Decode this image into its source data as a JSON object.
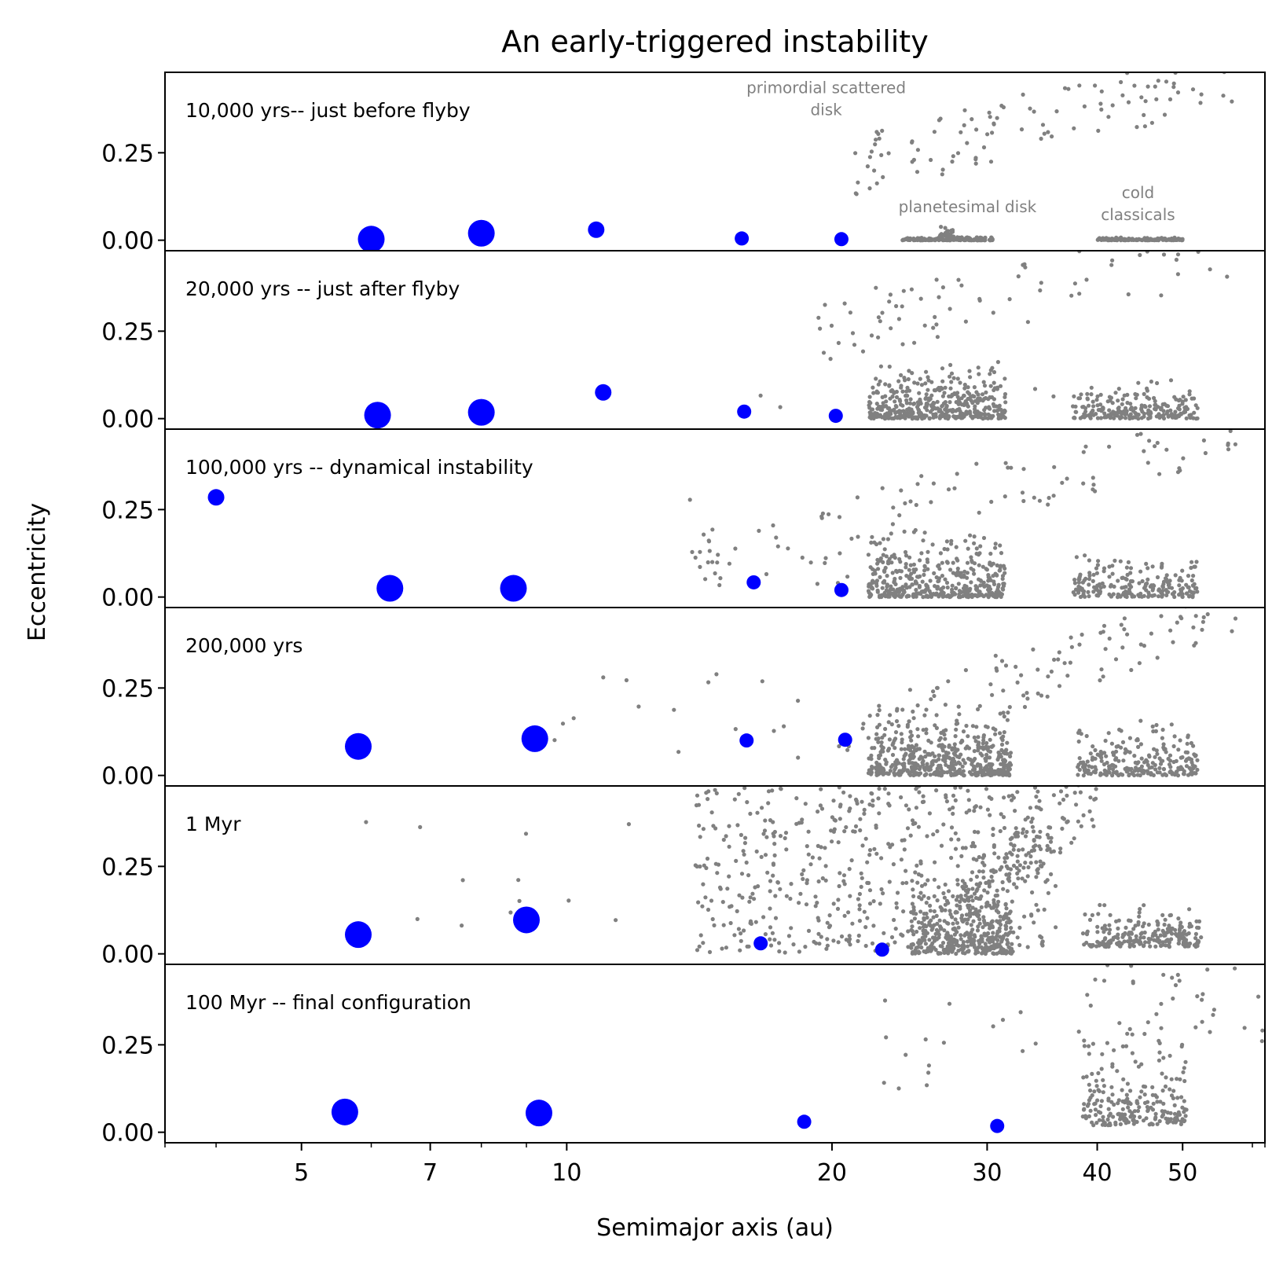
{
  "chart_data": {
    "type": "scatter",
    "title": "An early-triggered instability",
    "xlabel": "Semimajor axis (au)",
    "ylabel": "Eccentricity",
    "xscale": "log",
    "xlim": [
      3.5,
      62
    ],
    "ylim": [
      -0.03,
      0.48
    ],
    "x_ticks": [
      5,
      7,
      10,
      20,
      30,
      40,
      50
    ],
    "x_tick_labels": [
      "5",
      "7",
      "10",
      "20",
      "30",
      "40",
      "50"
    ],
    "x_minor_ticks": [
      4,
      6,
      8,
      9,
      60
    ],
    "y_ticks": [
      0.0,
      0.25
    ],
    "y_tick_labels": [
      "0.00",
      "0.25"
    ],
    "colors": {
      "planet": "#0000ff",
      "particle": "#808080"
    },
    "annotations": [
      {
        "panel": 0,
        "lines": [
          "primordial scattered",
          "disk"
        ],
        "x": 19.7,
        "y": 0.42
      },
      {
        "panel": 0,
        "lines": [
          "planetesimal disk"
        ],
        "x": 28.5,
        "y": 0.08
      },
      {
        "panel": 0,
        "lines": [
          "cold",
          "classicals"
        ],
        "x": 44.5,
        "y": 0.12
      }
    ],
    "panels": [
      {
        "label": "10,000 yrs-- just before flyby",
        "planets": [
          {
            "a": 6.0,
            "e": 0.003,
            "size": 3
          },
          {
            "a": 8.0,
            "e": 0.02,
            "size": 3
          },
          {
            "a": 10.8,
            "e": 0.03,
            "size": 2
          },
          {
            "a": 15.8,
            "e": 0.005,
            "size": 1
          },
          {
            "a": 20.5,
            "e": 0.003,
            "size": 1
          }
        ],
        "particles": [
          {
            "population": "scattered",
            "a_range": [
              20.5,
              58
            ],
            "e_range": [
              0.2,
              0.48
            ],
            "trend": true,
            "count": 110,
            "seed": 11
          },
          {
            "population": "disk",
            "a_range": [
              24,
              30.5
            ],
            "e_range": [
              0.0,
              0.01
            ],
            "count": 230,
            "seed": 12
          },
          {
            "population": "disk",
            "a_range": [
              26.5,
              27.5
            ],
            "e_range": [
              0.01,
              0.045
            ],
            "count": 25,
            "seed": 13
          },
          {
            "population": "cold",
            "a_range": [
              40,
              50
            ],
            "e_range": [
              0.0,
              0.008
            ],
            "count": 150,
            "seed": 14
          }
        ]
      },
      {
        "label": "20,000 yrs -- just after flyby",
        "planets": [
          {
            "a": 6.1,
            "e": 0.01,
            "size": 3
          },
          {
            "a": 8.0,
            "e": 0.018,
            "size": 3
          },
          {
            "a": 11.0,
            "e": 0.075,
            "size": 2
          },
          {
            "a": 15.9,
            "e": 0.02,
            "size": 1
          },
          {
            "a": 20.2,
            "e": 0.008,
            "size": 1
          }
        ],
        "particles": [
          {
            "population": "scattered",
            "a_range": [
              19,
              58
            ],
            "e_range": [
              0.25,
              0.48
            ],
            "trend": true,
            "count": 80,
            "seed": 21
          },
          {
            "population": "disk",
            "a_range": [
              22,
              31.5
            ],
            "e_range": [
              0.0,
              0.17
            ],
            "count": 420,
            "seed": 22
          },
          {
            "population": "cold",
            "a_range": [
              37.5,
              52
            ],
            "e_range": [
              0.0,
              0.12
            ],
            "count": 220,
            "seed": 23
          },
          {
            "population": "sparse",
            "a_range": [
              16,
              37
            ],
            "e_range": [
              0.0,
              0.16
            ],
            "count": 8,
            "seed": 24
          }
        ]
      },
      {
        "label": "100,000 yrs -- dynamical instability",
        "planets": [
          {
            "a": 4.0,
            "e": 0.285,
            "size": 2
          },
          {
            "a": 6.3,
            "e": 0.025,
            "size": 3
          },
          {
            "a": 8.7,
            "e": 0.025,
            "size": 3
          },
          {
            "a": 16.3,
            "e": 0.042,
            "size": 1
          },
          {
            "a": 20.5,
            "e": 0.02,
            "size": 1
          }
        ],
        "particles": [
          {
            "population": "scattered",
            "a_range": [
              14,
              58
            ],
            "e_range": [
              0.1,
              0.48
            ],
            "trend": true,
            "count": 100,
            "seed": 31
          },
          {
            "population": "disk",
            "a_range": [
              22,
              31.5
            ],
            "e_range": [
              0.0,
              0.2
            ],
            "count": 420,
            "seed": 32
          },
          {
            "population": "cold",
            "a_range": [
              37.5,
              52
            ],
            "e_range": [
              0.0,
              0.13
            ],
            "count": 220,
            "seed": 33
          },
          {
            "population": "sparse",
            "a_range": [
              13.5,
              21
            ],
            "e_range": [
              0.03,
              0.28
            ],
            "count": 14,
            "seed": 34
          }
        ]
      },
      {
        "label": "200,000 yrs",
        "planets": [
          {
            "a": 5.8,
            "e": 0.083,
            "size": 3
          },
          {
            "a": 9.2,
            "e": 0.105,
            "size": 3
          },
          {
            "a": 16.0,
            "e": 0.1,
            "size": 1
          },
          {
            "a": 20.7,
            "e": 0.102,
            "size": 1
          }
        ],
        "particles": [
          {
            "population": "scattered",
            "a_range": [
              20,
              58
            ],
            "e_range": [
              0.1,
              0.48
            ],
            "trend": true,
            "count": 110,
            "seed": 41
          },
          {
            "population": "disk",
            "a_range": [
              22,
              32
            ],
            "e_range": [
              0.0,
              0.19
            ],
            "count": 520,
            "seed": 42
          },
          {
            "population": "cold",
            "a_range": [
              38,
              52
            ],
            "e_range": [
              0.0,
              0.17
            ],
            "count": 240,
            "seed": 43
          },
          {
            "population": "sparse",
            "a_range": [
              8.5,
              21
            ],
            "e_range": [
              0.05,
              0.3
            ],
            "count": 18,
            "seed": 44
          }
        ]
      },
      {
        "label": "1 Myr",
        "planets": [
          {
            "a": 5.8,
            "e": 0.055,
            "size": 3
          },
          {
            "a": 9.0,
            "e": 0.097,
            "size": 3
          },
          {
            "a": 16.6,
            "e": 0.03,
            "size": 1
          },
          {
            "a": 22.8,
            "e": 0.012,
            "size": 1
          }
        ],
        "particles": [
          {
            "population": "wide",
            "a_range": [
              14,
              36
            ],
            "e_range": [
              0.0,
              0.48
            ],
            "count": 560,
            "seed": 51
          },
          {
            "population": "disk",
            "a_range": [
              24.5,
              32
            ],
            "e_range": [
              0.0,
              0.25
            ],
            "count": 380,
            "seed": 52
          },
          {
            "population": "scattered",
            "a_range": [
              28,
              40
            ],
            "e_range": [
              0.15,
              0.46
            ],
            "trend": true,
            "count": 120,
            "seed": 53
          },
          {
            "population": "cold",
            "a_range": [
              38.5,
              52.5
            ],
            "e_range": [
              0.02,
              0.15
            ],
            "count": 230,
            "seed": 54
          },
          {
            "population": "sparse",
            "a_range": [
              5.3,
              13.5
            ],
            "e_range": [
              0.05,
              0.39
            ],
            "count": 12,
            "seed": 55
          }
        ]
      },
      {
        "label": "100 Myr -- final configuration",
        "planets": [
          {
            "a": 5.6,
            "e": 0.058,
            "size": 3
          },
          {
            "a": 9.3,
            "e": 0.055,
            "size": 3
          },
          {
            "a": 18.6,
            "e": 0.03,
            "size": 1
          },
          {
            "a": 30.8,
            "e": 0.018,
            "size": 1
          }
        ],
        "particles": [
          {
            "population": "cold",
            "a_range": [
              38.5,
              50.5
            ],
            "e_range": [
              0.02,
              0.3
            ],
            "count": 220,
            "seed": 61
          },
          {
            "population": "scattered",
            "a_range": [
              38,
              62
            ],
            "e_range": [
              0.25,
              0.48
            ],
            "count": 40,
            "seed": 62
          },
          {
            "population": "sparse",
            "a_range": [
              22.5,
              36
            ],
            "e_range": [
              0.01,
              0.38
            ],
            "count": 16,
            "seed": 63
          }
        ]
      }
    ]
  }
}
